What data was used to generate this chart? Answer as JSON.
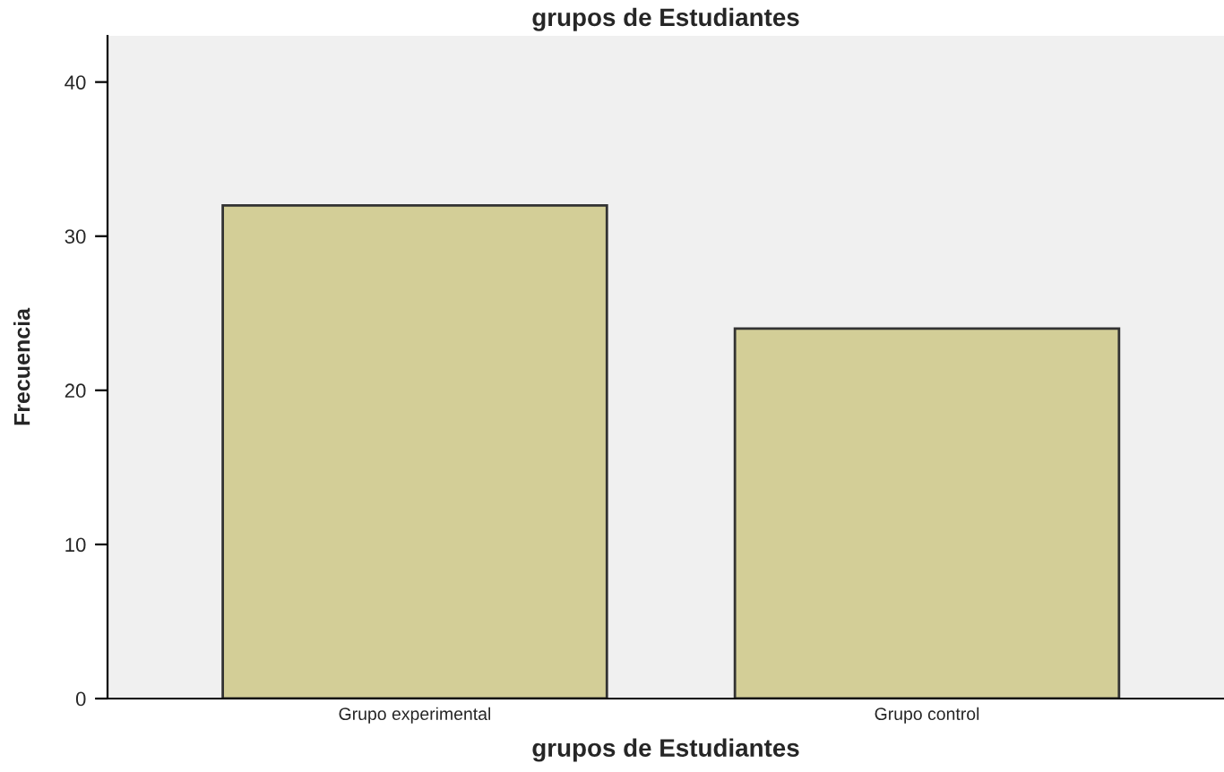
{
  "chart_data": {
    "type": "bar",
    "title": "grupos de Estudiantes",
    "xlabel": "grupos de Estudiantes",
    "ylabel": "Frecuencia",
    "categories": [
      "Grupo experimental",
      "Grupo control"
    ],
    "values": [
      32,
      24
    ],
    "color": "#d3ce97",
    "ylim": [
      0,
      43
    ],
    "yticks": [
      0,
      10,
      20,
      30,
      40
    ],
    "grid": false
  }
}
